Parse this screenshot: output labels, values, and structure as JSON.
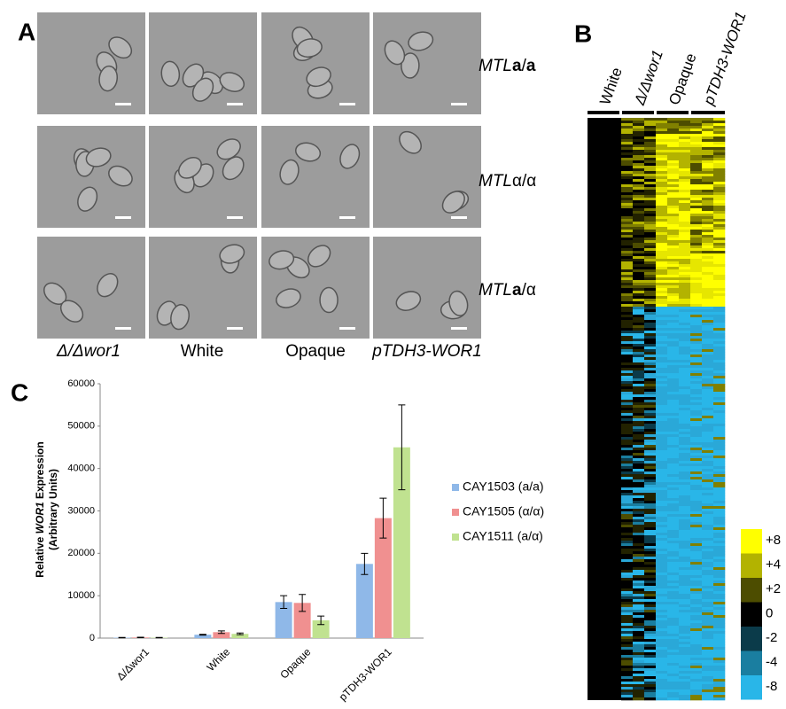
{
  "panel_a": {
    "label": "A",
    "row_labels": [
      [
        "MTL",
        "a",
        "/",
        "a"
      ],
      [
        "MTL",
        "α/α"
      ],
      [
        "MTL",
        "a",
        "/α"
      ]
    ],
    "column_labels": [
      "Δ/Δwor1",
      "White",
      "Opaque",
      "pTDH3-WOR1"
    ]
  },
  "panel_b": {
    "label": "B",
    "column_labels": [
      "White",
      "Δ/Δwor1",
      "Opaque",
      "pTDH3-WOR1"
    ],
    "colorbar_labels": [
      "+8",
      "+4",
      "+2",
      "0",
      "-2",
      "-4",
      "-8"
    ]
  },
  "chart_data": {
    "type": "bar",
    "label": "C",
    "y_label": [
      "Relative ",
      "WOR1",
      " Expression",
      "(Arbitrary Units)"
    ],
    "categories": [
      "Δ/Δwor1",
      "White",
      "Opaque",
      "pTDH3-WOR1"
    ],
    "series": [
      {
        "name": "CAY1503 (a/a)",
        "color": "#8fb8e8",
        "values": [
          100,
          800,
          8500,
          17500
        ],
        "errors": [
          50,
          100,
          1500,
          2500
        ]
      },
      {
        "name": "CAY1505 (α/α)",
        "color": "#f09090",
        "values": [
          150,
          1400,
          8300,
          28300
        ],
        "errors": [
          50,
          300,
          2000,
          4700
        ]
      },
      {
        "name": "CAY1511 (a/α)",
        "color": "#c0e290",
        "values": [
          100,
          1000,
          4200,
          45000
        ],
        "errors": [
          50,
          200,
          1000,
          10000
        ]
      }
    ],
    "ylim": [
      0,
      60000
    ],
    "yticks": [
      0,
      10000,
      20000,
      30000,
      40000,
      50000,
      60000
    ]
  }
}
